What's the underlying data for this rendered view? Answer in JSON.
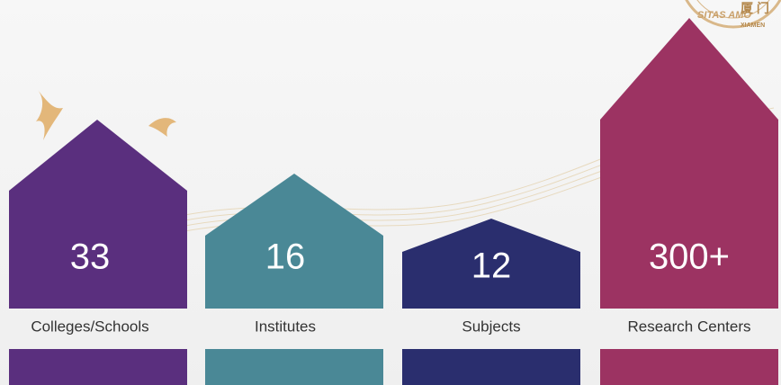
{
  "logo": {
    "ring_text": "SITAS AMO",
    "name_cn": "厦 门",
    "name_en": "XIAMEN"
  },
  "items": [
    {
      "value": "33",
      "label": "Colleges/Schools"
    },
    {
      "value": "16",
      "label": "Institutes"
    },
    {
      "value": "12",
      "label": "Subjects"
    },
    {
      "value": "300+",
      "label": "Research Centers"
    }
  ]
}
